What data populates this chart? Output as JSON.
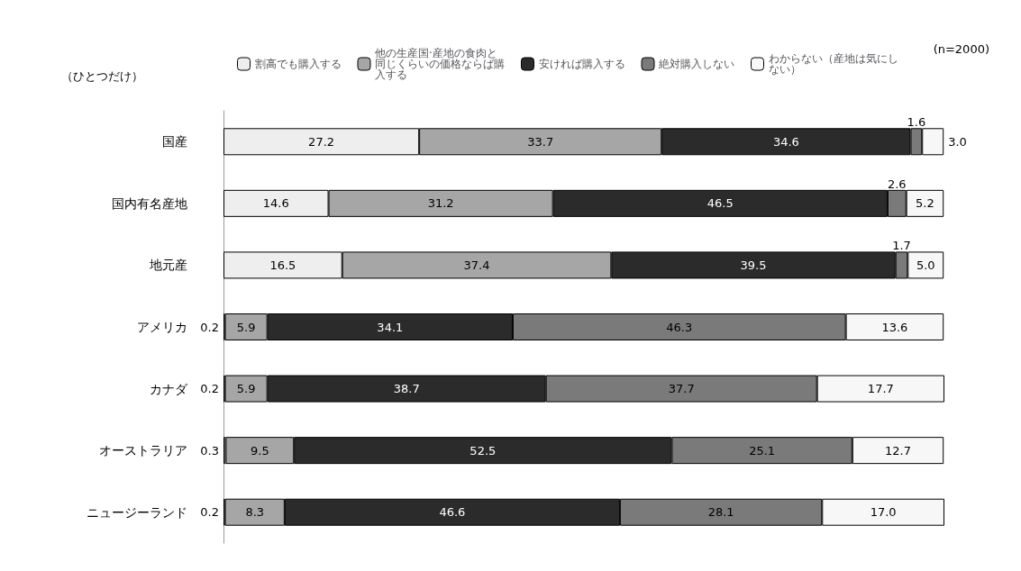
{
  "chart_data": {
    "type": "bar",
    "orientation": "horizontal",
    "stacked": true,
    "categories": [
      "国産",
      "国内有名産地",
      "地元産",
      "アメリカ",
      "カナダ",
      "オーストラリア",
      "ニュージーランド"
    ],
    "series": [
      {
        "name": "割高でも購入する",
        "color": "#eeeeee",
        "values": [
          27.2,
          14.6,
          16.5,
          0.2,
          0.2,
          0.3,
          0.2
        ],
        "value_labels": [
          "27.2",
          "14.6",
          "16.5",
          "0.2",
          "0.2",
          "0.3",
          "0.2"
        ]
      },
      {
        "name": "他の生産国·産地の食肉と同じくらいの価格ならば購入する",
        "color": "#a6a6a6",
        "values": [
          33.7,
          31.2,
          37.4,
          5.9,
          5.9,
          9.5,
          8.3
        ],
        "value_labels": [
          "33.7",
          "31.2",
          "37.4",
          "5.9",
          "5.9",
          "9.5",
          "8.3"
        ]
      },
      {
        "name": "安ければ購入する",
        "color": "#2b2b2b",
        "values": [
          34.6,
          46.5,
          39.5,
          34.1,
          38.7,
          52.5,
          46.6
        ],
        "value_labels": [
          "34.6",
          "46.5",
          "39.5",
          "34.1",
          "38.7",
          "52.5",
          "46.6"
        ]
      },
      {
        "name": "絶対購入しない",
        "color": "#7a7a7a",
        "values": [
          1.6,
          2.6,
          1.7,
          46.3,
          37.7,
          25.1,
          28.1
        ],
        "value_labels": [
          "1.6",
          "2.6",
          "1.7",
          "46.3",
          "37.7",
          "25.1",
          "28.1"
        ]
      },
      {
        "name": "わからない（産地は気にしない）",
        "color": "#f7f7f7",
        "values": [
          3.0,
          5.2,
          5.0,
          13.6,
          17.7,
          12.7,
          17.0
        ],
        "value_labels": [
          "3.0",
          "5.2",
          "5.0",
          "13.6",
          "17.7",
          "12.7",
          "17.0"
        ]
      }
    ],
    "legend": "top",
    "grid": false,
    "annotations": [
      "（ひとつだけ）",
      "(n=2000)"
    ]
  }
}
